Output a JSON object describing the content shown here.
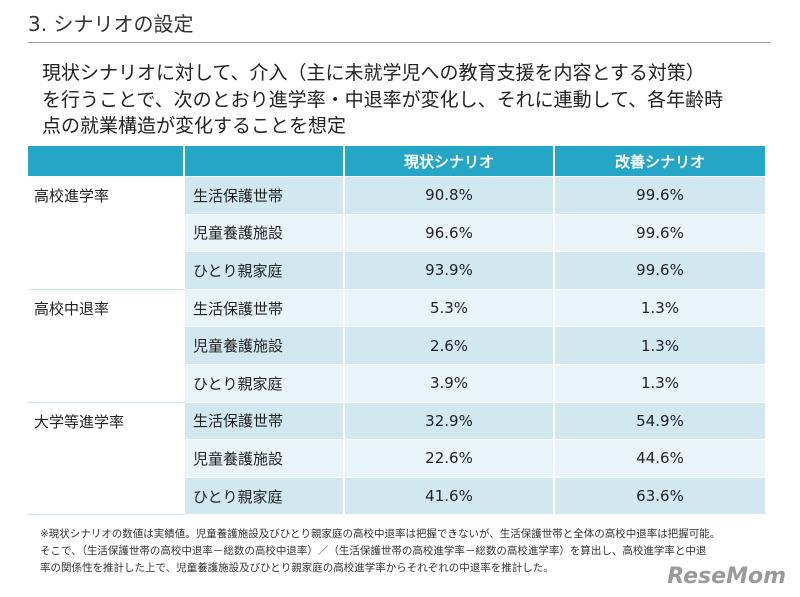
{
  "title": "3. シナリオの設定",
  "intro": [
    "現状シナリオに対して、介入（主に未就学児への教育支援を内容とする対策）",
    "を行うことで、次のとおり進学率・中退率が変化し、それに連動して、各年齢時",
    "点の就業構造が変化することを想定"
  ],
  "table": {
    "columns": [
      "現状シナリオ",
      "改善シナリオ"
    ],
    "groups": [
      {
        "label": "高校進学率",
        "rows": [
          [
            "生活保護世帯",
            "90.8%",
            "99.6%"
          ],
          [
            "児童養護施設",
            "96.6%",
            "99.6%"
          ],
          [
            "ひとり親家庭",
            "93.9%",
            "99.6%"
          ]
        ]
      },
      {
        "label": "高校中退率",
        "rows": [
          [
            "生活保護世帯",
            "5.3%",
            "1.3%"
          ],
          [
            "児童養護施設",
            "2.6%",
            "1.3%"
          ],
          [
            "ひとり親家庭",
            "3.9%",
            "1.3%"
          ]
        ]
      },
      {
        "label": "大学等進学率",
        "rows": [
          [
            "生活保護世帯",
            "32.9%",
            "54.9%"
          ],
          [
            "児童養護施設",
            "22.6%",
            "44.6%"
          ],
          [
            "ひとり親家庭",
            "41.6%",
            "63.6%"
          ]
        ]
      }
    ]
  },
  "footnote": [
    "※現状シナリオの数値は実績値。児童養護施設及びひとり親家庭の高校中退率は把握できないが、生活保護世帯と全体の高校中退率は把握可能。",
    "そこで、（生活保護世帯の高校中退率－総数の高校中退率）／（生活保護世帯の高校進学率－総数の高校進学率）を算出し、高校進学率と中退",
    "率の関係性を推計した上で、児童養護施設及びひとり親家庭の高校進学率からそれぞれの中退率を推計した。"
  ],
  "logo": "ReseMom"
}
